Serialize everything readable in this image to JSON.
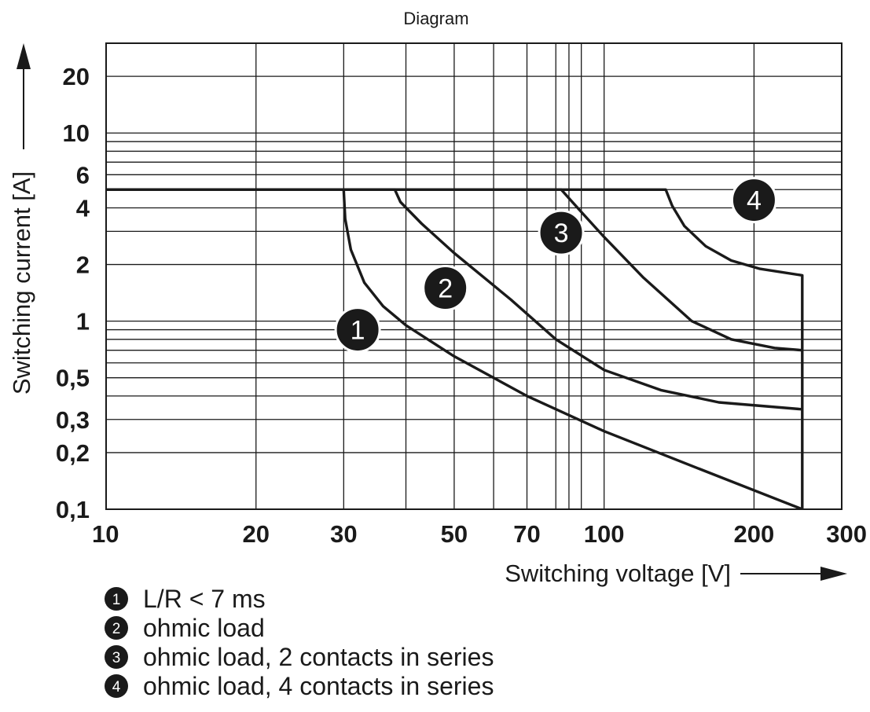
{
  "chart_data": {
    "type": "line",
    "title": "Diagram",
    "xlabel": "Switching voltage [V]",
    "ylabel": "Switching current [A]",
    "x_scale": "log",
    "y_scale": "log",
    "xlim": [
      10,
      300
    ],
    "ylim": [
      0.1,
      30
    ],
    "grid": true,
    "x_ticks": [
      {
        "value": 10,
        "label": "10"
      },
      {
        "value": 20,
        "label": "20"
      },
      {
        "value": 30,
        "label": "30"
      },
      {
        "value": 50,
        "label": "50"
      },
      {
        "value": 70,
        "label": "70"
      },
      {
        "value": 100,
        "label": "100"
      },
      {
        "value": 200,
        "label": "200"
      },
      {
        "value": 300,
        "label": "300"
      }
    ],
    "y_ticks": [
      {
        "value": 0.1,
        "label": "0,1"
      },
      {
        "value": 0.2,
        "label": "0,2"
      },
      {
        "value": 0.3,
        "label": "0,3"
      },
      {
        "value": 0.5,
        "label": "0,5"
      },
      {
        "value": 1,
        "label": "1"
      },
      {
        "value": 2,
        "label": "2"
      },
      {
        "value": 4,
        "label": "4"
      },
      {
        "value": 6,
        "label": "6"
      },
      {
        "value": 10,
        "label": "10"
      },
      {
        "value": 20,
        "label": "20"
      }
    ],
    "x_grid": [
      20,
      30,
      40,
      50,
      60,
      70,
      80,
      85,
      90,
      100,
      200
    ],
    "y_grid": [
      0.2,
      0.3,
      0.4,
      0.5,
      0.6,
      0.7,
      0.8,
      0.9,
      1,
      2,
      3,
      4,
      5,
      6,
      7,
      8,
      9,
      10,
      20
    ],
    "series": [
      {
        "marker": "1",
        "x": [
          10,
          30,
          30.2,
          31,
          33,
          36,
          40,
          50,
          70,
          100,
          150,
          250
        ],
        "y": [
          5,
          5,
          3.5,
          2.4,
          1.6,
          1.2,
          0.95,
          0.65,
          0.4,
          0.26,
          0.17,
          0.1
        ]
      },
      {
        "marker": "2",
        "x": [
          10,
          38,
          39,
          43,
          50,
          65,
          80,
          100,
          130,
          170,
          250
        ],
        "y": [
          5,
          5,
          4.3,
          3.3,
          2.3,
          1.3,
          0.8,
          0.55,
          0.43,
          0.37,
          0.34
        ]
      },
      {
        "marker": "3",
        "x": [
          10,
          82,
          90,
          100,
          120,
          150,
          180,
          220,
          250
        ],
        "y": [
          5,
          5,
          3.8,
          2.8,
          1.7,
          1.0,
          0.8,
          0.72,
          0.7
        ]
      },
      {
        "marker": "4",
        "x": [
          10,
          133,
          137,
          145,
          160,
          180,
          205,
          250,
          250,
          250
        ],
        "y": [
          5,
          5,
          4.1,
          3.2,
          2.5,
          2.1,
          1.9,
          1.75,
          0.1,
          1.75
        ]
      }
    ],
    "markers": [
      {
        "label": "1",
        "x": 32,
        "y": 0.9
      },
      {
        "label": "2",
        "x": 48,
        "y": 1.5
      },
      {
        "label": "3",
        "x": 82,
        "y": 2.95
      },
      {
        "label": "4",
        "x": 200,
        "y": 4.4
      }
    ],
    "legend": [
      {
        "marker": "1",
        "text": "L/R < 7 ms"
      },
      {
        "marker": "2",
        "text": "ohmic load"
      },
      {
        "marker": "3",
        "text": "ohmic load, 2 contacts in series"
      },
      {
        "marker": "4",
        "text": "ohmic load, 4 contacts in series"
      }
    ],
    "legend_position": "bottom-left"
  }
}
